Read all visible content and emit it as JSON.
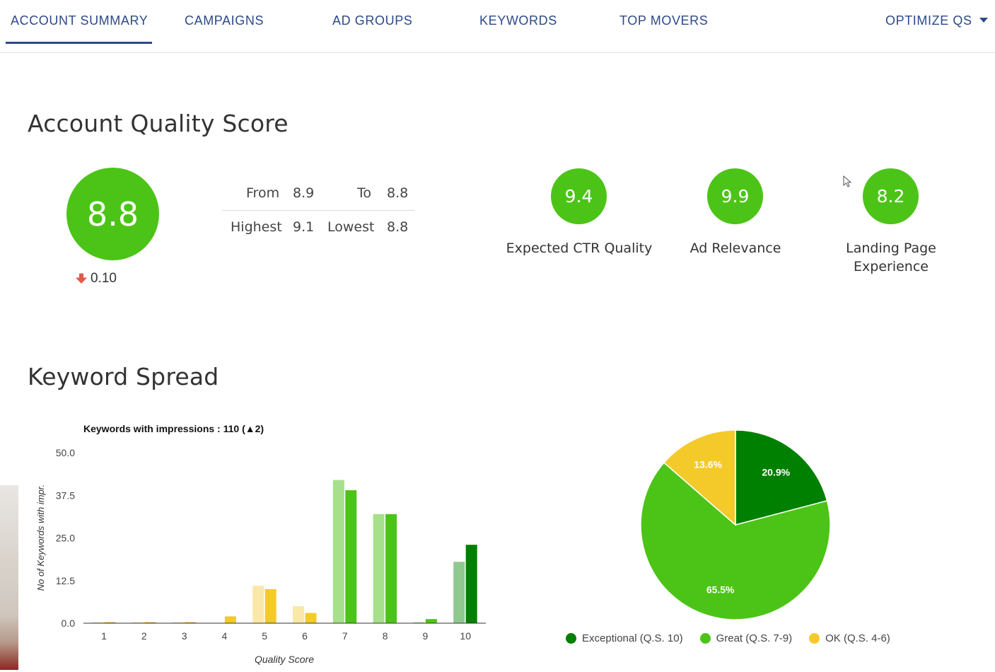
{
  "nav": {
    "tabs": [
      "ACCOUNT SUMMARY",
      "CAMPAIGNS",
      "AD GROUPS",
      "KEYWORDS",
      "TOP MOVERS"
    ],
    "optimize_label": "OPTIMIZE QS",
    "active_tab": "ACCOUNT SUMMARY",
    "accent_color": "#2c4a8a"
  },
  "quality": {
    "title": "Account Quality Score",
    "score": "8.8",
    "change": "0.10",
    "change_direction": "down",
    "from_label": "From",
    "from_value": "8.9",
    "to_label": "To",
    "to_value": "8.8",
    "highest_label": "Highest",
    "highest_value": "9.1",
    "lowest_label": "Lowest",
    "lowest_value": "8.8",
    "score_color": "#4cc417",
    "metrics": [
      {
        "value": "9.4",
        "label": "Expected CTR Quality"
      },
      {
        "value": "9.9",
        "label": "Ad Relevance"
      },
      {
        "value": "8.2",
        "label": "Landing Page Experience"
      }
    ]
  },
  "spread": {
    "title": "Keyword Spread"
  },
  "chart_data": [
    {
      "type": "bar",
      "title": "Keywords with impressions : 110 (▲2)",
      "xlabel": "Quality Score",
      "ylabel": "No of Keywords with impr.",
      "ylim": [
        0,
        50
      ],
      "yticks": [
        "0.0",
        "12.5",
        "25.0",
        "37.5",
        "50.0"
      ],
      "categories": [
        "1",
        "2",
        "3",
        "4",
        "5",
        "6",
        "7",
        "8",
        "9",
        "10"
      ],
      "series": [
        {
          "values": [
            0.3,
            0.3,
            0.3,
            0,
            11,
            5,
            42,
            32,
            0.3,
            18
          ]
        },
        {
          "values": [
            0.3,
            0.3,
            0.3,
            2,
            10,
            3,
            39,
            32,
            1.2,
            23
          ]
        }
      ],
      "colors_previous": [
        "#f7dda3",
        "#f7dda3",
        "#f7dda3",
        "#f9e8a8",
        "#f9e8a8",
        "#f9e8a8",
        "#a6e08b",
        "#a6e08b",
        "#a6e08b",
        "#90c990"
      ],
      "colors_current": [
        "#e8a33d",
        "#e8a33d",
        "#e8a33d",
        "#f4ca2a",
        "#f4ca2a",
        "#f4ca2a",
        "#4cc417",
        "#4cc417",
        "#4cc417",
        "#008000"
      ],
      "grid": false,
      "legend": "none"
    },
    {
      "type": "pie",
      "slices": [
        {
          "name": "Exceptional (Q.S. 10)",
          "value": 20.9,
          "label": "20.9%",
          "color": "#008000"
        },
        {
          "name": "Great (Q.S. 7-9)",
          "value": 65.5,
          "label": "65.5%",
          "color": "#4cc417"
        },
        {
          "name": "OK (Q.S. 4-6)",
          "value": 13.6,
          "label": "13.6%",
          "color": "#f4ca2a"
        }
      ],
      "legend": "bottom"
    }
  ]
}
